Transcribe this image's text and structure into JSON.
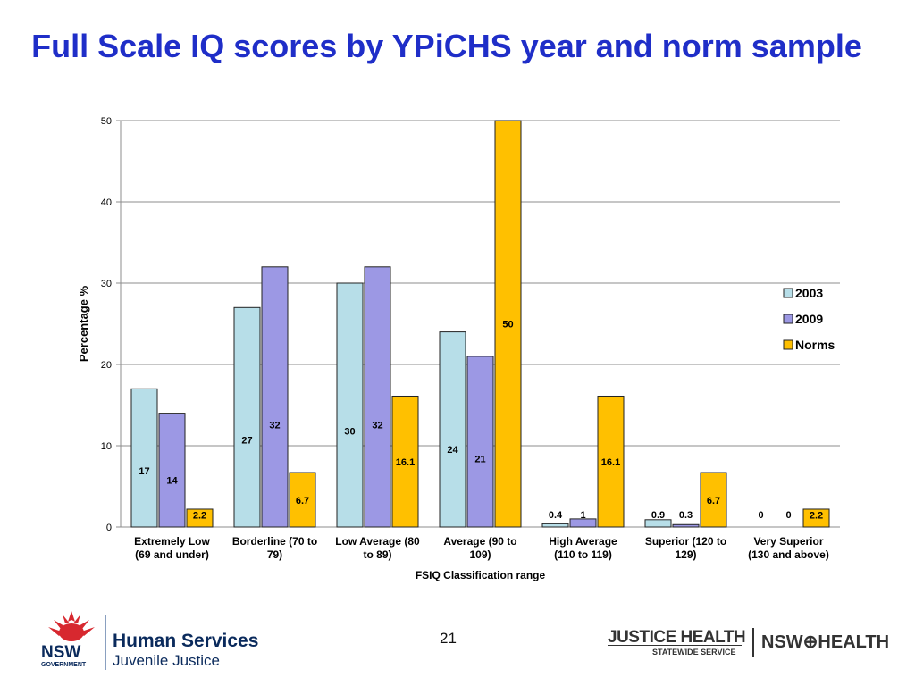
{
  "slide": {
    "title": "Full Scale IQ scores by YPiCHS year and norm sample",
    "page_number": "21"
  },
  "logos": {
    "nsw": "NSW",
    "nsw_government": "GOVERNMENT",
    "human_services": "Human Services",
    "juvenile_justice": "Juvenile Justice",
    "justice_health": "JUSTICE HEALTH",
    "statewide_service": "STATEWIDE SERVICE",
    "nsw_health": "NSW⊕HEALTH"
  },
  "colors": {
    "title": "#1f2ec8",
    "series_2003": "#b7dee8",
    "series_2009": "#9c98e4",
    "series_norms": "#ffc000",
    "nsw_red": "#d7282f"
  },
  "chart_data": {
    "type": "bar",
    "categories": [
      [
        "Extremely Low",
        "(69 and under)"
      ],
      [
        "Borderline (70 to",
        "79)"
      ],
      [
        "Low Average (80",
        "to 89)"
      ],
      [
        "Average (90 to",
        "109)"
      ],
      [
        "High Average",
        "(110 to 119)"
      ],
      [
        "Superior (120 to",
        "129)"
      ],
      [
        "Very Superior",
        "(130 and above)"
      ]
    ],
    "series": [
      {
        "name": "2003",
        "values": [
          17,
          27,
          30,
          24,
          0.4,
          0.9,
          0
        ],
        "labels": [
          "17",
          "27",
          "30",
          "24",
          "0.4",
          "0.9",
          "0"
        ]
      },
      {
        "name": "2009",
        "values": [
          14,
          32,
          32,
          21,
          1,
          0.3,
          0
        ],
        "labels": [
          "14",
          "32",
          "32",
          "21",
          "1",
          "0.3",
          "0"
        ]
      },
      {
        "name": "Norms",
        "values": [
          2.2,
          6.7,
          16.1,
          50,
          16.1,
          6.7,
          2.2
        ],
        "labels": [
          "2.2",
          "6.7",
          "16.1",
          "50",
          "16.1",
          "6.7",
          "2.2"
        ]
      }
    ],
    "xlabel": "FSIQ Classification range",
    "ylabel": "Percentage %",
    "ylim": [
      0,
      50
    ],
    "yticks": [
      "0",
      "10",
      "20",
      "30",
      "40",
      "50"
    ],
    "grid": true,
    "legend_position": "right"
  }
}
